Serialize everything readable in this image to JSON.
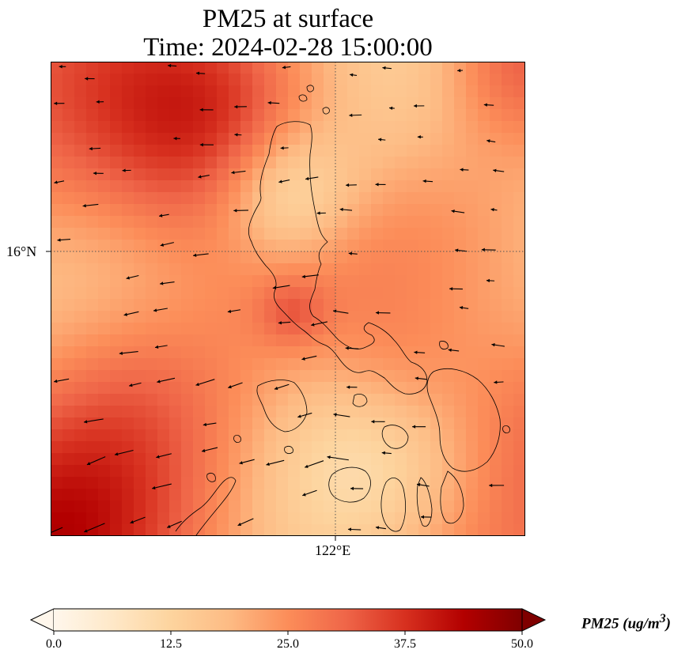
{
  "title_line1": "PM25 at surface",
  "title_line2": "Time: 2024-02-28 15:00:00",
  "latitude_tick": "16°N",
  "longitude_tick": "122°E",
  "colorbar": {
    "label": "PM25 (ug/m3)",
    "label_base": "PM25 (ug/m",
    "label_sup": "3",
    "label_end": ")",
    "min": 0.0,
    "max": 50.0,
    "ticks": [
      "0.0",
      "12.5",
      "25.0",
      "37.5",
      "50.0"
    ],
    "colormap": "OrRd",
    "extend": "both",
    "colors": [
      "#fff7ec",
      "#fee8c8",
      "#fdd49e",
      "#fdbb84",
      "#fc8d59",
      "#ef6548",
      "#d7301f",
      "#b30000",
      "#7f0000"
    ]
  },
  "map": {
    "frame_color": "#000000",
    "gridline_style": "dotted",
    "overlay": "wind-vectors",
    "coastline_color": "#000000"
  }
}
